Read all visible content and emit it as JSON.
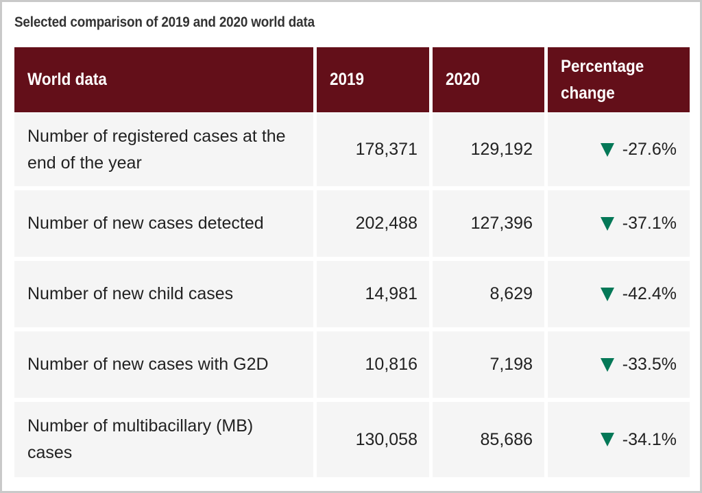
{
  "title": "Selected comparison of 2019 and 2020 world data",
  "table": {
    "headers": [
      "World data",
      "2019",
      "2020",
      "Percentage change"
    ],
    "rows": [
      {
        "label": "Number of registered cases at the end of the year",
        "y2019": "178,371",
        "y2020": "129,192",
        "change": "-27.6%",
        "direction": "down"
      },
      {
        "label": "Number of new cases detected",
        "y2019": "202,488",
        "y2020": "127,396",
        "change": "-37.1%",
        "direction": "down"
      },
      {
        "label": "Number of new child cases",
        "y2019": "14,981",
        "y2020": "8,629",
        "change": "-42.4%",
        "direction": "down"
      },
      {
        "label": "Number of new cases with G2D",
        "y2019": "10,816",
        "y2020": "7,198",
        "change": "-33.5%",
        "direction": "down"
      },
      {
        "label": "Number of multibacillary (MB) cases",
        "y2019": "130,058",
        "y2020": "85,686",
        "change": "-34.1%",
        "direction": "down"
      }
    ]
  },
  "colors": {
    "header_bg": "#630f19",
    "row_bg": "#f5f5f5",
    "down_arrow": "#047857"
  }
}
